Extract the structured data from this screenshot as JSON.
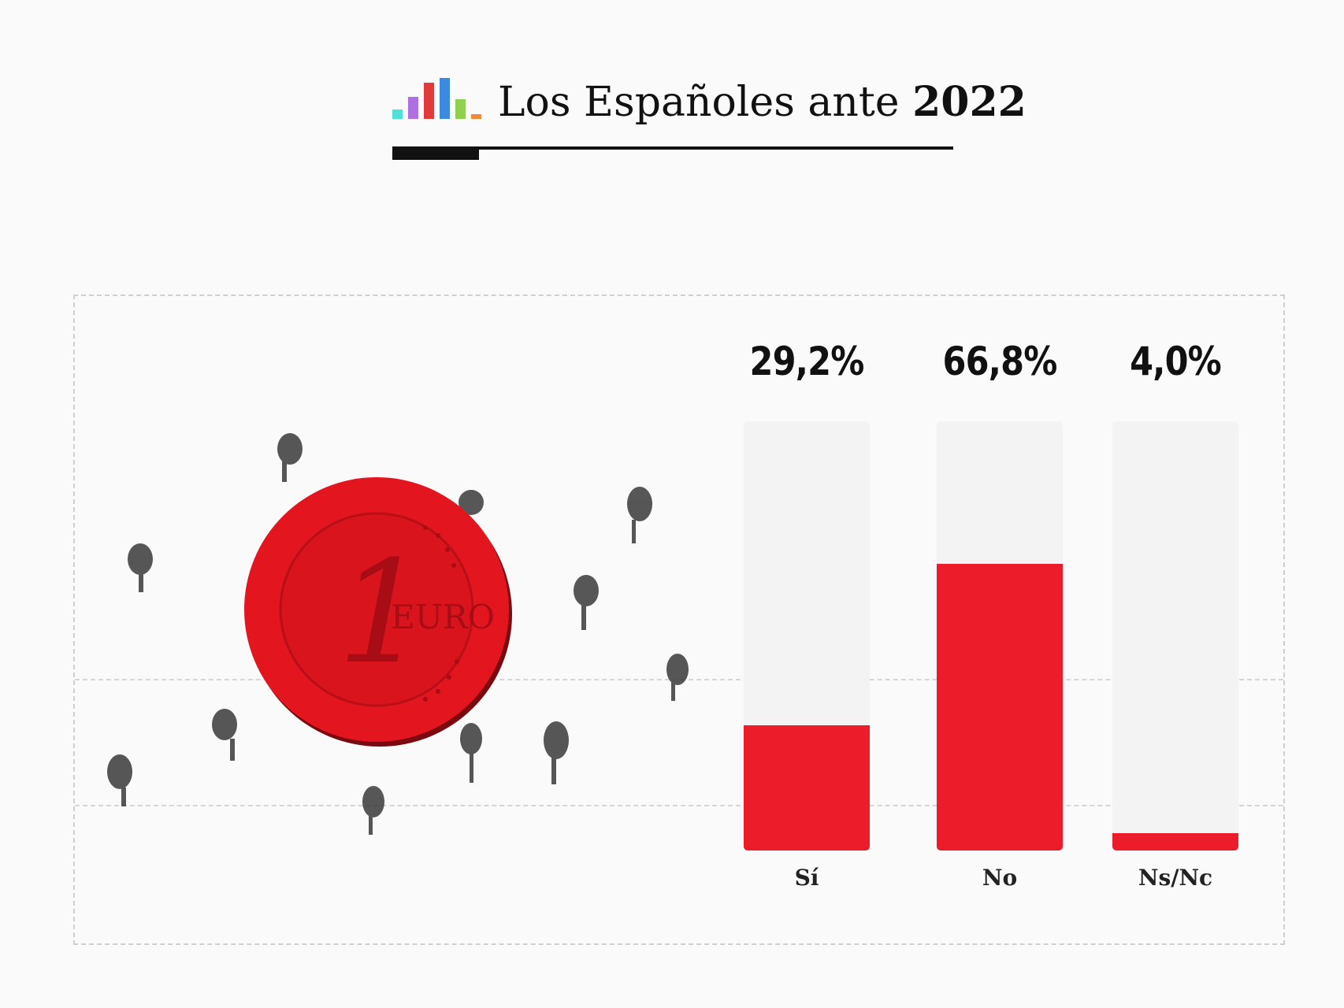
{
  "header": {
    "title_prefix": "Los Españoles ante ",
    "title_year": "2022",
    "logo_colors": [
      "#4fe0d8",
      "#b06fe0",
      "#e03a3a",
      "#3a8be0",
      "#8fd14f",
      "#f08a3a"
    ]
  },
  "chart_data": {
    "type": "bar",
    "categories": [
      "Sí",
      "No",
      "Ns/Nc"
    ],
    "values": [
      29.2,
      66.8,
      4.0
    ],
    "value_labels": [
      "29,2%",
      "66,8%",
      "4,0%"
    ],
    "ylim": [
      0,
      100
    ],
    "bar_color": "#ed1c2b",
    "track_color": "#f3f3f3",
    "title": "",
    "xlabel": "",
    "ylabel": ""
  },
  "illustration": {
    "icon": "euro-coin-icon",
    "coin_digit": "1",
    "coin_text": "EURO",
    "coin_color": "#e3151f"
  }
}
